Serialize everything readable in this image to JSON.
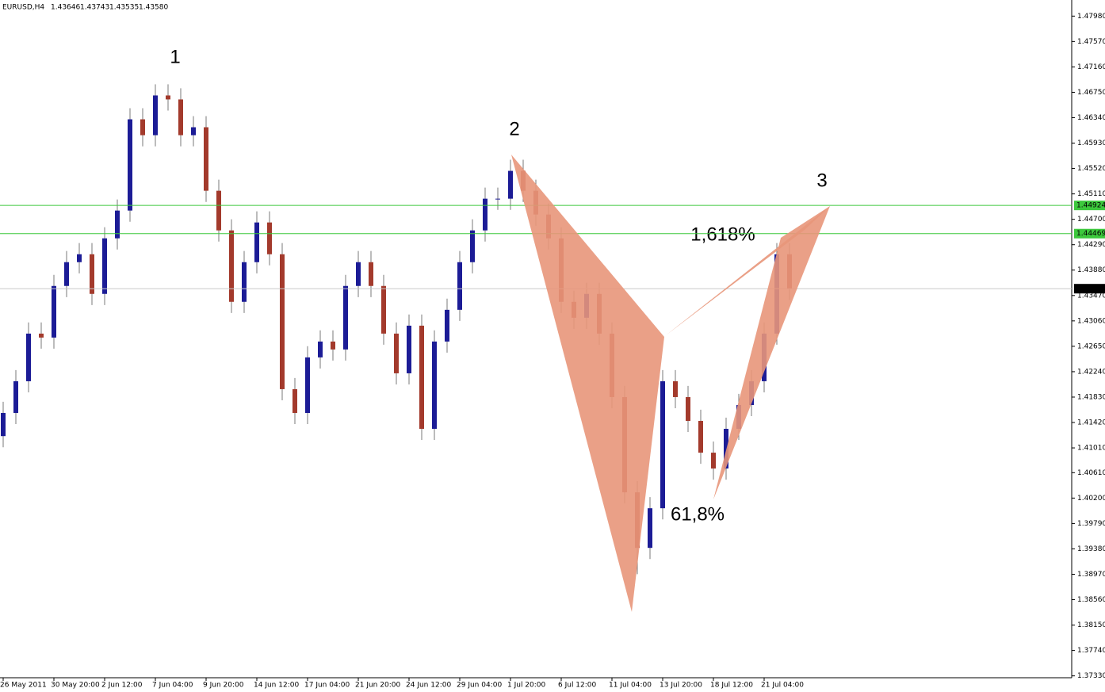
{
  "chart_data": {
    "type": "candlestick",
    "title": "EURUSD,H4",
    "quote": [
      "1.43646",
      "1.43743",
      "1.43535",
      "1.43580"
    ],
    "annotations": [
      "1",
      "2",
      "3",
      "1,618%",
      "61,8%"
    ],
    "categories": [
      "26 May 2011",
      null,
      null,
      null,
      "30 May 20:00",
      null,
      null,
      null,
      "2 Jun 12:00",
      null,
      null,
      null,
      "7 Jun 04:00",
      null,
      null,
      null,
      "9 Jun 20:00",
      null,
      null,
      null,
      "14 Jun 12:00",
      null,
      null,
      null,
      "17 Jun 04:00",
      null,
      null,
      null,
      "21 Jun 20:00",
      null,
      null,
      null,
      "24 Jun 12:00",
      null,
      null,
      null,
      "29 Jun 04:00",
      null,
      null,
      null,
      "1 Jul 20:00",
      null,
      null,
      null,
      "6 Jul 12:00",
      null,
      null,
      null,
      "11 Jul 04:00",
      null,
      null,
      null,
      "13 Jul 20:00",
      null,
      null,
      null,
      "18 Jul 12:00",
      null,
      null,
      null,
      "21 Jul 04:00",
      null,
      null
    ],
    "open": [
      1.412,
      1.41574,
      1.42086,
      1.42855,
      1.42791,
      1.43624,
      1.44008,
      1.44136,
      1.43496,
      1.44393,
      1.44841,
      1.46314,
      1.46058,
      1.46699,
      1.46635,
      1.46058,
      1.46186,
      1.45161,
      1.44521,
      1.43368,
      1.44008,
      1.44649,
      1.44136,
      1.41958,
      1.41574,
      1.42471,
      1.42727,
      1.42599,
      1.43624,
      1.44008,
      1.43624,
      1.42855,
      1.42214,
      1.42983,
      1.41318,
      1.42727,
      1.43239,
      1.44008,
      1.44521,
      1.45033,
      1.45033,
      1.45482,
      1.45161,
      1.44777,
      1.44393,
      1.43368,
      1.43111,
      1.43496,
      1.42855,
      1.4183,
      1.40293,
      1.39396,
      1.40036,
      1.42086,
      1.4183,
      1.41446,
      1.40933,
      1.40677,
      1.41318,
      1.41702,
      1.42086,
      1.42855,
      1.44136
    ],
    "high": [
      1.41754,
      1.42266,
      1.43035,
      1.43035,
      1.43804,
      1.44188,
      1.44316,
      1.44316,
      1.44573,
      1.45021,
      1.46494,
      1.46494,
      1.46879,
      1.46879,
      1.46815,
      1.46366,
      1.46366,
      1.45341,
      1.44701,
      1.44188,
      1.44829,
      1.44829,
      1.44316,
      1.42138,
      1.42651,
      1.42907,
      1.42907,
      1.43804,
      1.44188,
      1.44188,
      1.43804,
      1.43035,
      1.43163,
      1.43163,
      1.42907,
      1.43419,
      1.44188,
      1.44701,
      1.45213,
      1.45213,
      1.45662,
      1.45662,
      1.45341,
      1.44957,
      1.44573,
      1.43548,
      1.43676,
      1.43676,
      1.43035,
      1.4201,
      1.40473,
      1.40216,
      1.42266,
      1.42266,
      1.4201,
      1.41626,
      1.41113,
      1.41498,
      1.41882,
      1.42266,
      1.43035,
      1.44316,
      1.44316
    ],
    "low": [
      1.4102,
      1.41394,
      1.41906,
      1.42611,
      1.42611,
      1.43444,
      1.43828,
      1.43316,
      1.43316,
      1.44213,
      1.44661,
      1.45878,
      1.45878,
      1.46455,
      1.45878,
      1.45878,
      1.44981,
      1.44341,
      1.43188,
      1.43188,
      1.43828,
      1.43956,
      1.41778,
      1.41394,
      1.41394,
      1.42291,
      1.42419,
      1.42419,
      1.43444,
      1.43444,
      1.42675,
      1.42034,
      1.42034,
      1.41138,
      1.41138,
      1.42547,
      1.43059,
      1.43828,
      1.44341,
      1.44853,
      1.44853,
      1.44981,
      1.44597,
      1.44213,
      1.43188,
      1.42931,
      1.42931,
      1.42675,
      1.4165,
      1.40113,
      1.38971,
      1.39216,
      1.39856,
      1.4165,
      1.41266,
      1.40753,
      1.40497,
      1.40497,
      1.41138,
      1.41522,
      1.41906,
      1.42675,
      1.434
    ],
    "close": [
      1.41574,
      1.42086,
      1.42855,
      1.42791,
      1.43624,
      1.44008,
      1.44136,
      1.43496,
      1.44393,
      1.44841,
      1.46314,
      1.46058,
      1.46699,
      1.46635,
      1.46058,
      1.46186,
      1.45161,
      1.44521,
      1.43368,
      1.44008,
      1.44649,
      1.44136,
      1.41958,
      1.41574,
      1.42471,
      1.42727,
      1.42599,
      1.43624,
      1.44008,
      1.43624,
      1.42855,
      1.42214,
      1.42983,
      1.41318,
      1.42727,
      1.43239,
      1.44008,
      1.44521,
      1.45033,
      1.45033,
      1.45482,
      1.45161,
      1.44777,
      1.44393,
      1.43368,
      1.43111,
      1.43496,
      1.42855,
      1.4183,
      1.40293,
      1.39396,
      1.40036,
      1.42086,
      1.4183,
      1.41446,
      1.40933,
      1.40677,
      1.41318,
      1.41702,
      1.42086,
      1.42855,
      1.44136,
      1.4358
    ],
    "up_color": "#1c1c96",
    "down_color": "#a33a2c",
    "levels": [
      {
        "value": 1.44924,
        "label": "1.44924",
        "color": "#3cc83c"
      },
      {
        "value": 1.44469,
        "label": "1.44469",
        "color": "#3cc83c"
      },
      {
        "value": 1.4358,
        "label": "1.43580",
        "color": "#c8c8c8"
      }
    ],
    "ylim": [
      1.373,
      1.4824
    ],
    "yticks": [
      {
        "value": 1.4798,
        "label": "1.47980"
      },
      {
        "value": 1.4757,
        "label": "1.47570"
      },
      {
        "value": 1.4716,
        "label": "1.47160"
      },
      {
        "value": 1.4675,
        "label": "1.46750"
      },
      {
        "value": 1.4634,
        "label": "1.46340"
      },
      {
        "value": 1.4593,
        "label": "1.45930"
      },
      {
        "value": 1.4552,
        "label": "1.45520"
      },
      {
        "value": 1.4511,
        "label": "1.45110"
      },
      {
        "value": 1.447,
        "label": "1.44700"
      },
      {
        "value": 1.4429,
        "label": "1.44290"
      },
      {
        "value": 1.4388,
        "label": "1.43880"
      },
      {
        "value": 1.4347,
        "label": "1.43470"
      },
      {
        "value": 1.4306,
        "label": "1.43060"
      },
      {
        "value": 1.4265,
        "label": "1.42650"
      },
      {
        "value": 1.4224,
        "label": "1.42240"
      },
      {
        "value": 1.4183,
        "label": "1.41830"
      },
      {
        "value": 1.4142,
        "label": "1.41420"
      },
      {
        "value": 1.4101,
        "label": "1.41010"
      },
      {
        "value": 1.4061,
        "label": "1.40610"
      },
      {
        "value": 1.402,
        "label": "1.40200"
      },
      {
        "value": 1.3979,
        "label": "1.39790"
      },
      {
        "value": 1.3938,
        "label": "1.39380"
      },
      {
        "value": 1.3897,
        "label": "1.38970"
      },
      {
        "value": 1.3856,
        "label": "1.38560"
      },
      {
        "value": 1.3815,
        "label": "1.38150"
      },
      {
        "value": 1.3774,
        "label": "1.37740"
      },
      {
        "value": 1.3733,
        "label": "1.37330"
      }
    ]
  }
}
